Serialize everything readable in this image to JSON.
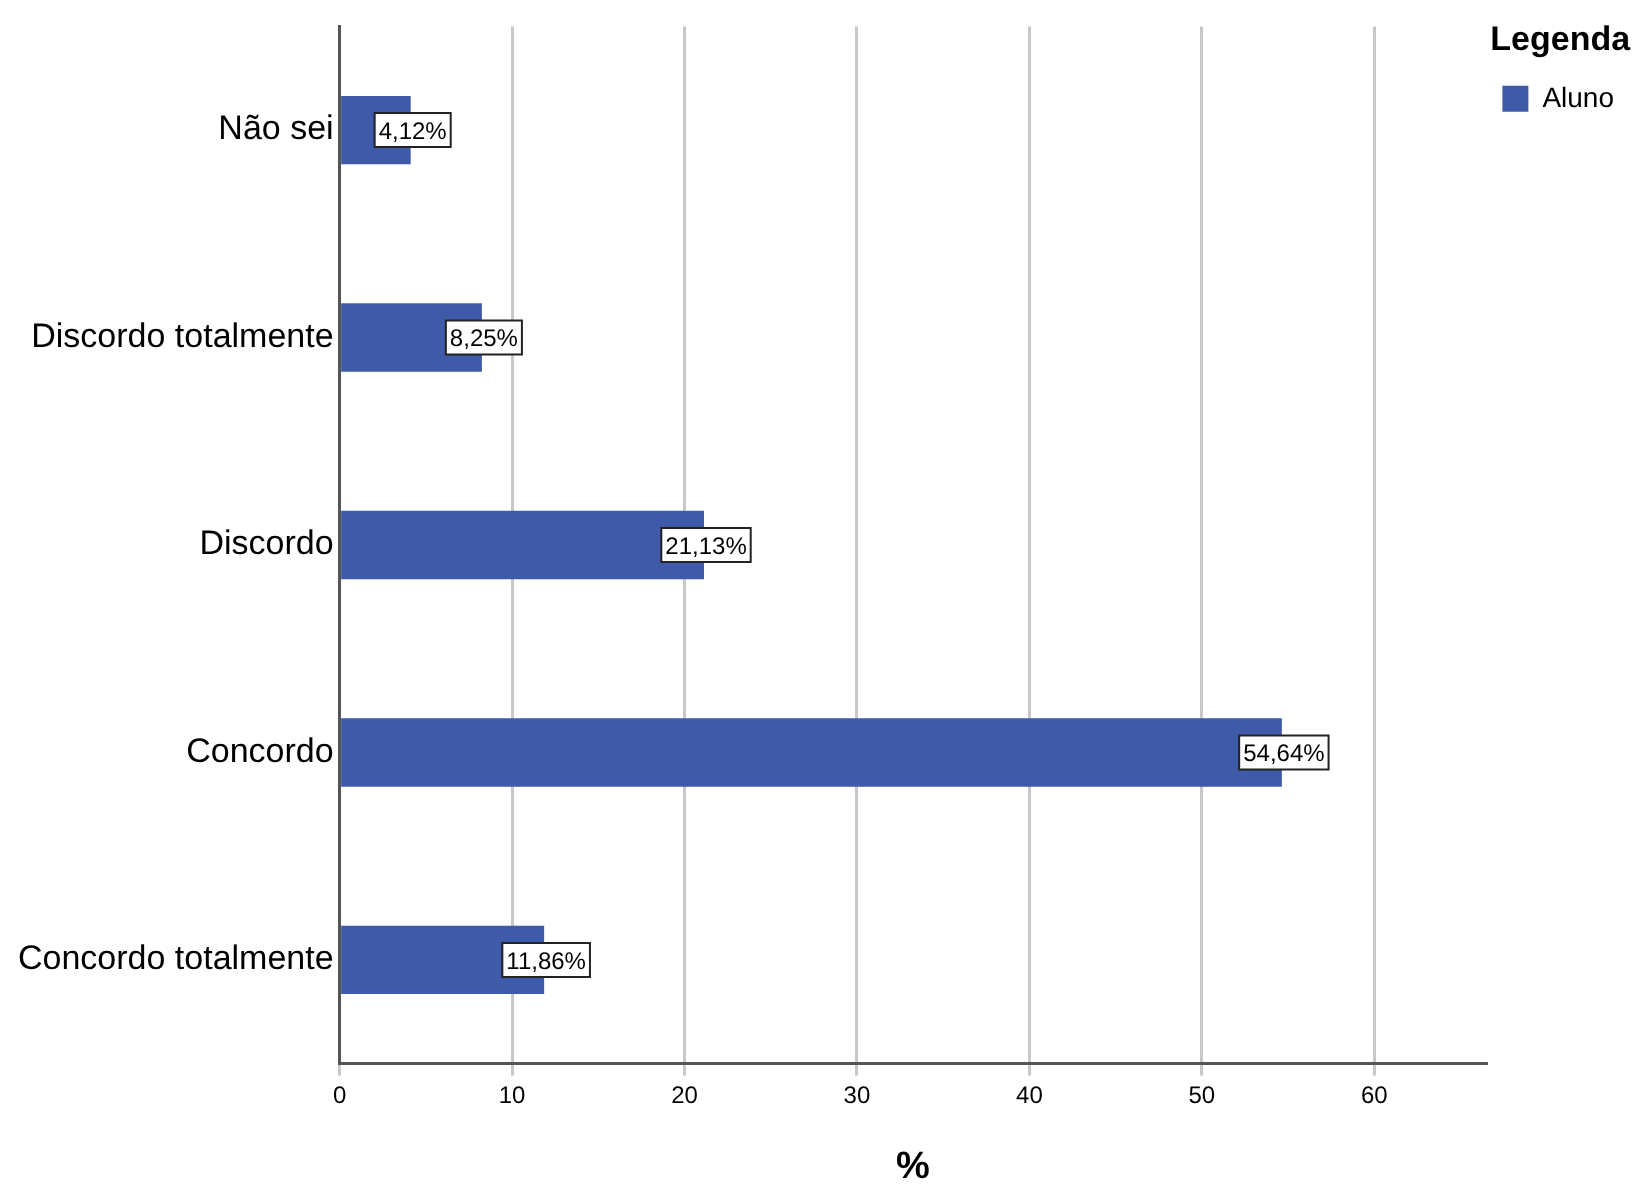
{
  "chart_data": {
    "type": "bar",
    "orientation": "horizontal",
    "categories": [
      "Não sei",
      "Discordo totalmente",
      "Discordo",
      "Concordo",
      "Concordo totalmente"
    ],
    "series": [
      {
        "name": "Aluno",
        "color": "#3f5aa8",
        "values": [
          4.12,
          8.25,
          21.13,
          54.64,
          11.86
        ],
        "value_labels": [
          "4,12%",
          "8,25%",
          "21,13%",
          "54,64%",
          "11,86%"
        ]
      }
    ],
    "xlabel": "%",
    "legend_title": "Legenda",
    "legend": "top right",
    "grid": "x",
    "xlim": [
      0,
      66.5
    ],
    "xticks": [
      0,
      10,
      20,
      30,
      40,
      50,
      60
    ]
  }
}
